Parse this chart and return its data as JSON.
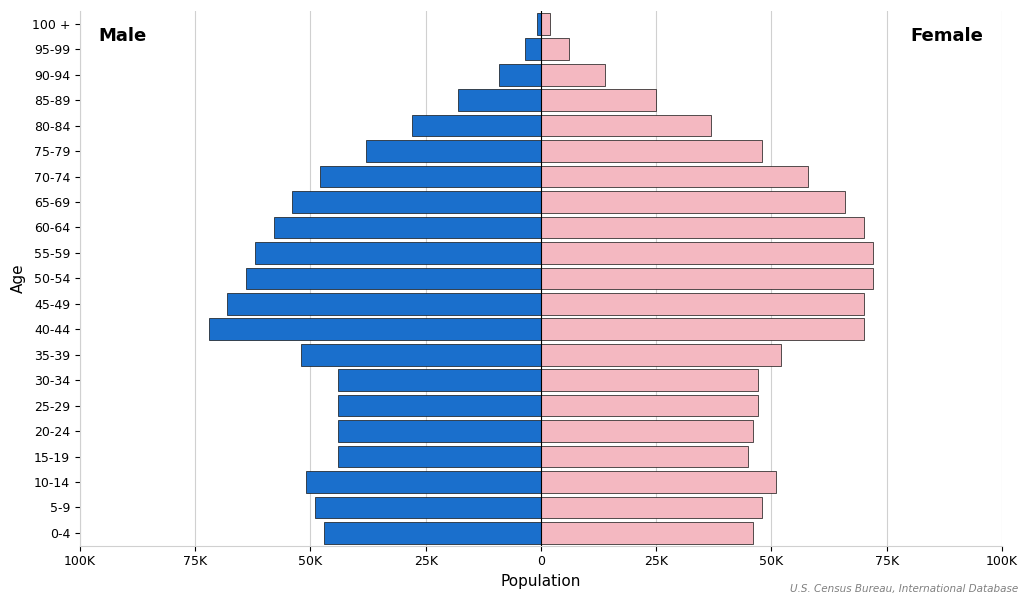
{
  "age_groups": [
    "0-4",
    "5-9",
    "10-14",
    "15-19",
    "20-24",
    "25-29",
    "30-34",
    "35-39",
    "40-44",
    "45-49",
    "50-54",
    "55-59",
    "60-64",
    "65-69",
    "70-74",
    "75-79",
    "80-84",
    "85-89",
    "90-94",
    "95-99",
    "100 +"
  ],
  "male": [
    47000,
    49000,
    51000,
    44000,
    44000,
    44000,
    44000,
    52000,
    72000,
    68000,
    64000,
    62000,
    58000,
    54000,
    48000,
    38000,
    28000,
    18000,
    9000,
    3500,
    800
  ],
  "female": [
    46000,
    48000,
    51000,
    45000,
    46000,
    47000,
    47000,
    52000,
    70000,
    70000,
    72000,
    72000,
    70000,
    66000,
    58000,
    48000,
    37000,
    25000,
    14000,
    6000,
    2000
  ],
  "male_color": "#1a6fcc",
  "female_color": "#f4b8c1",
  "edge_color": "#111111",
  "xlim": 100000,
  "xlabel": "Population",
  "ylabel": "Age",
  "male_label": "Male",
  "female_label": "Female",
  "source_text": "U.S. Census Bureau, International Database",
  "background_color": "#ffffff",
  "grid_color": "#d0d0d0",
  "tick_labels": [
    "100K",
    "75K",
    "50K",
    "25K",
    "0",
    "25K",
    "50K",
    "75K",
    "100K"
  ]
}
